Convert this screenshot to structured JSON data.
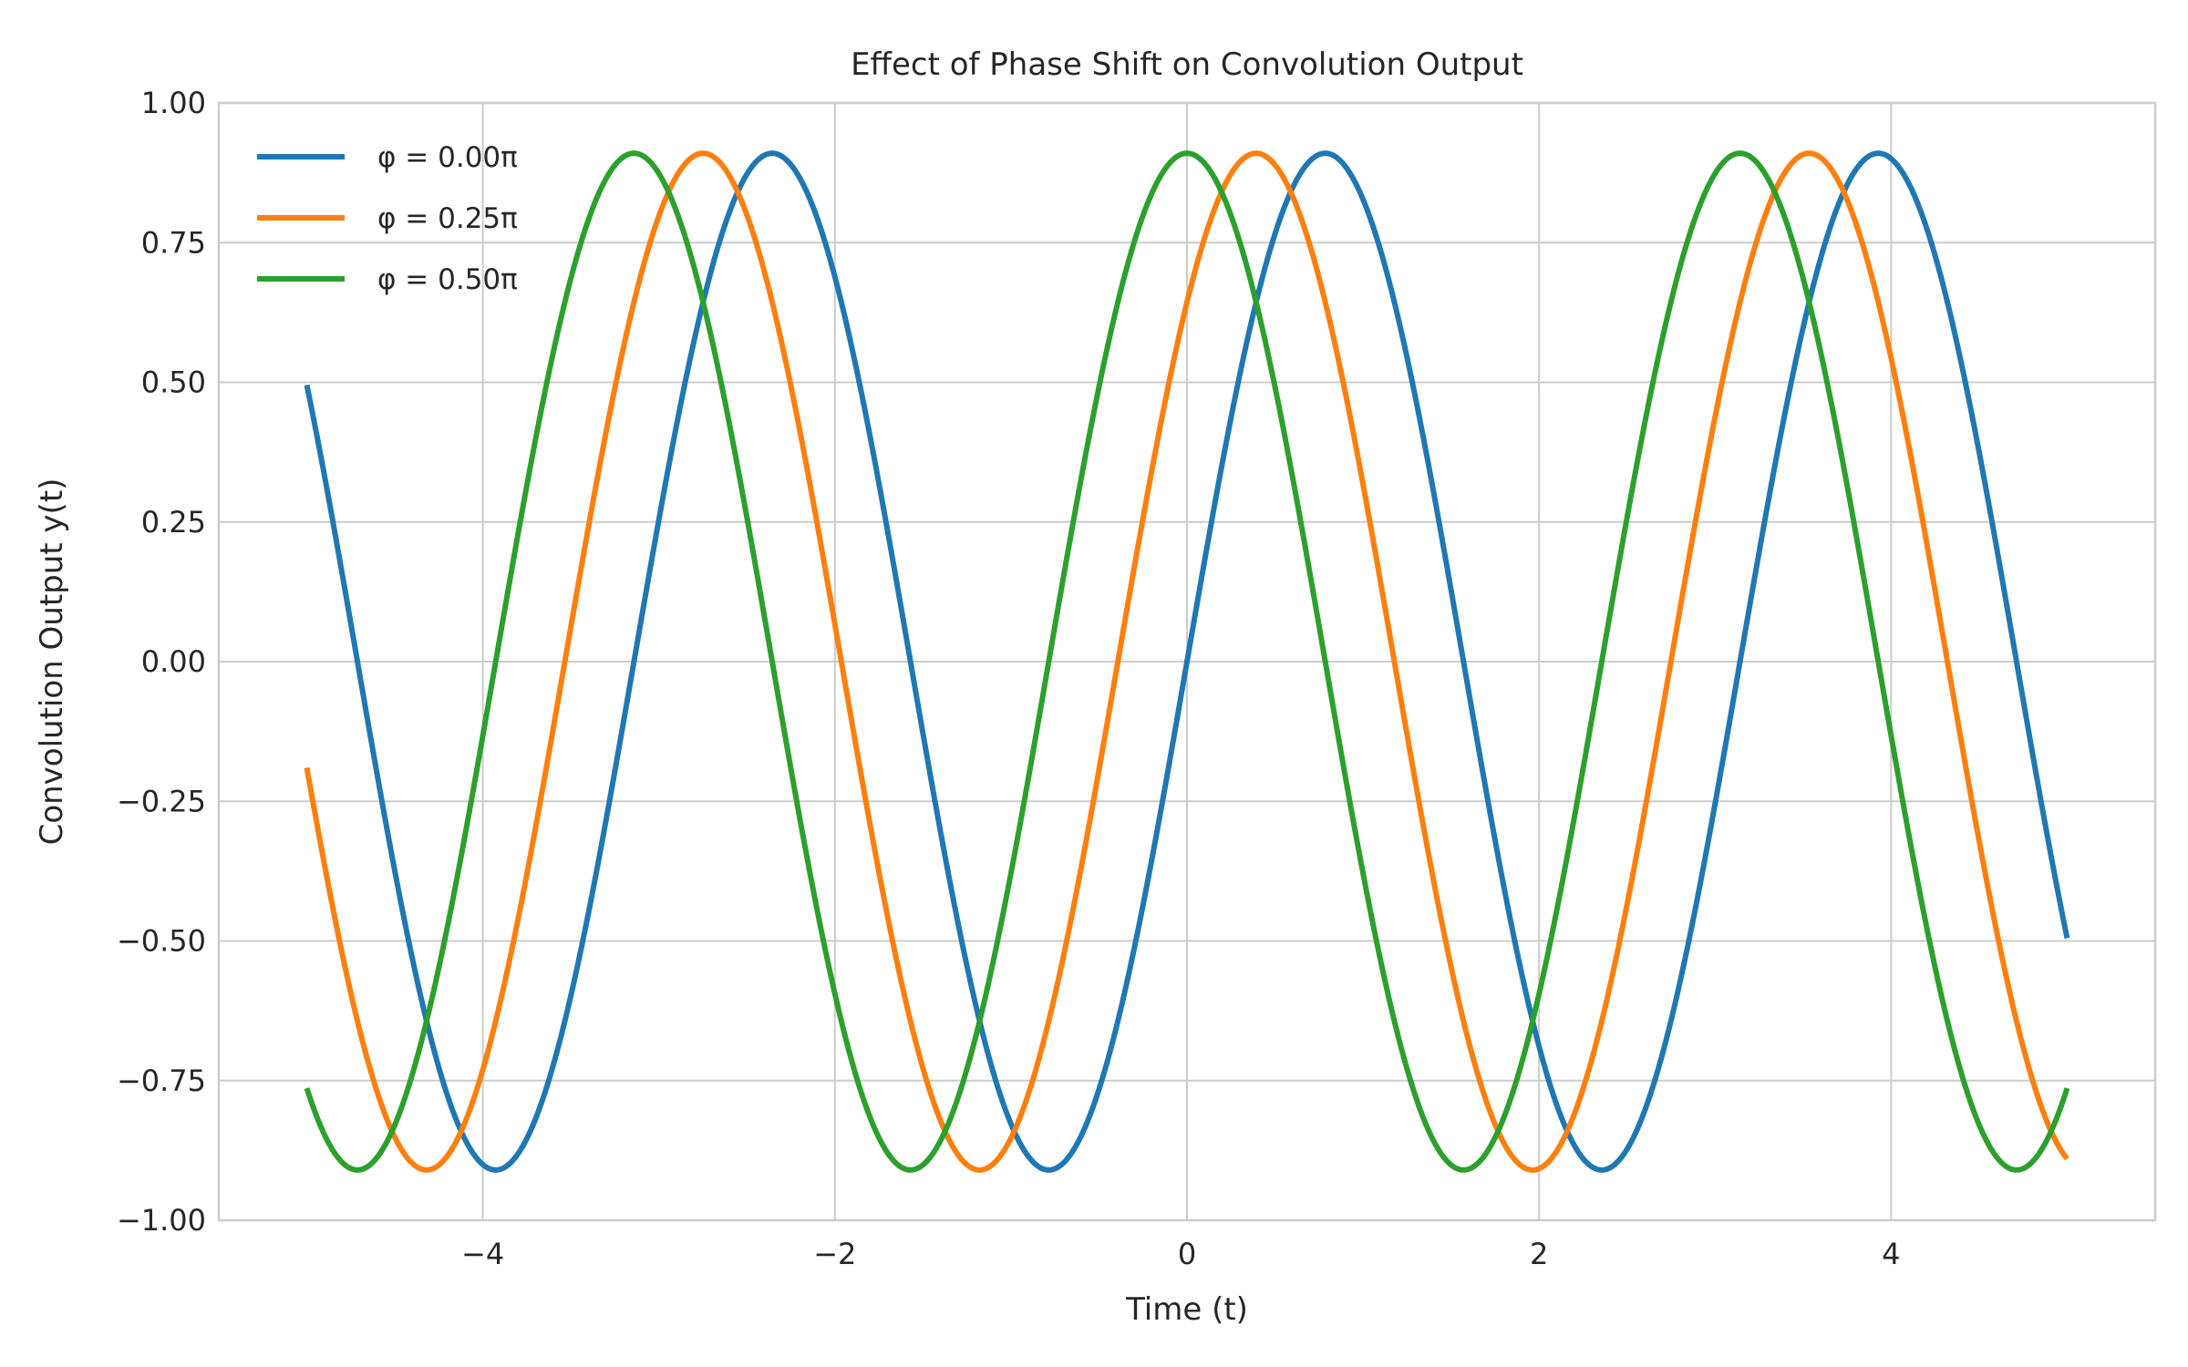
{
  "chart_data": {
    "type": "line",
    "title": "Effect of Phase Shift on Convolution Output",
    "xlabel": "Time (t)",
    "ylabel": "Convolution Output y(t)",
    "xlim": [
      -5.5,
      5.5
    ],
    "ylim": [
      -1.0,
      1.0
    ],
    "x_range": [
      -5,
      5
    ],
    "amplitude": 0.91,
    "frequency": 2,
    "x_ticks": [
      -4,
      -2,
      0,
      2,
      4
    ],
    "x_tick_labels": [
      "−4",
      "−2",
      "0",
      "2",
      "4"
    ],
    "y_ticks": [
      -1.0,
      -0.75,
      -0.5,
      -0.25,
      0.0,
      0.25,
      0.5,
      0.75,
      1.0
    ],
    "y_tick_labels": [
      "−1.00",
      "−0.75",
      "−0.50",
      "−0.25",
      "0.00",
      "0.25",
      "0.50",
      "0.75",
      "1.00"
    ],
    "grid": true,
    "legend_position": "top-left",
    "series": [
      {
        "name": "φ = 0.00π",
        "phase_pi": 0.0,
        "color": "#1f77b4"
      },
      {
        "name": "φ = 0.25π",
        "phase_pi": 0.25,
        "color": "#ff7f0e"
      },
      {
        "name": "φ = 0.50π",
        "phase_pi": 0.5,
        "color": "#2ca02c"
      }
    ]
  }
}
